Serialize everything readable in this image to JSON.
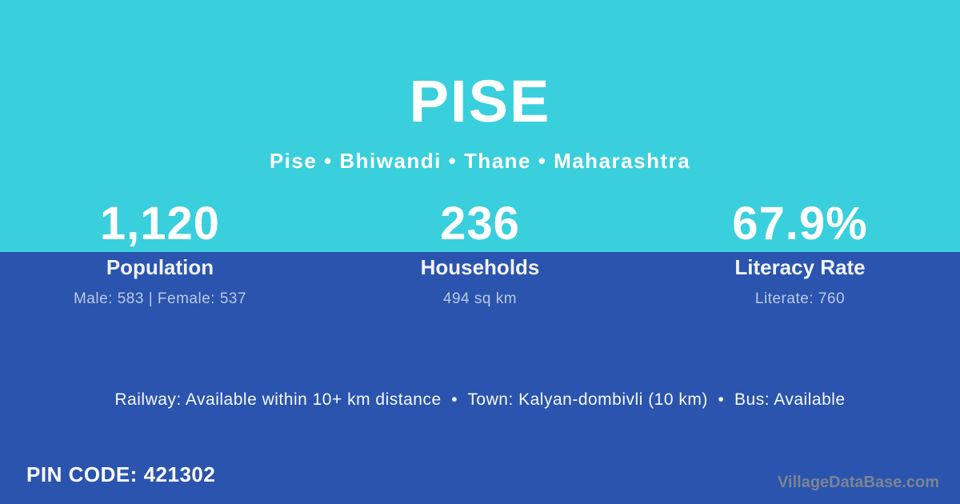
{
  "colors": {
    "top_bg": "#3acfdc",
    "bottom_bg": "#2a54ad",
    "text": "#ffffff",
    "muted_text": "rgba(255,255,255,0.68)",
    "watermark": "#7b8494"
  },
  "header": {
    "title": "PISE",
    "breadcrumb": "Pise • Bhiwandi • Thane • Maharashtra"
  },
  "stats": [
    {
      "value": "1,120",
      "label": "Population",
      "detail": "Male: 583 | Female: 537"
    },
    {
      "value": "236",
      "label": "Households",
      "detail": "494 sq km"
    },
    {
      "value": "67.9%",
      "label": "Literacy Rate",
      "detail": "Literate: 760"
    }
  ],
  "facilities_line": "Railway: Available within 10+ km distance  •  Town: Kalyan-dombivli (10 km)  •  Bus: Available",
  "footer": {
    "pin_code": "PIN CODE: 421302",
    "watermark": "VillageDataBase.com"
  }
}
